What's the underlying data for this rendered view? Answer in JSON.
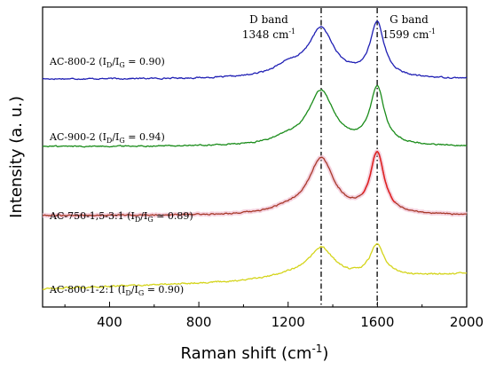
{
  "chart_data": {
    "type": "line",
    "xlabel": "Raman shift (cm",
    "xlabel_sup": "-1",
    "xlabel_end": ")",
    "ylabel": "Intensity (a. u.)",
    "xlim": [
      100,
      2000
    ],
    "x_ticks": [
      "400",
      "800",
      "1200",
      "1600",
      "2000"
    ],
    "x_tick_values": [
      400,
      800,
      1200,
      1600,
      2000
    ],
    "y_ticks_shown": false,
    "grid": false,
    "legend": "none",
    "reference_lines": [
      {
        "x": 1348,
        "style": "dash-dot",
        "name_line": "D band",
        "value_line": "1348 cm",
        "sup": "-1"
      },
      {
        "x": 1599,
        "style": "dash-dot",
        "name_line": "G band",
        "value_line": "1599 cm",
        "sup": "-1"
      }
    ],
    "series": [
      {
        "label_pre": "AC-800-2 (I",
        "sub1": "D",
        "label_mid": "/I",
        "sub2": "G",
        "label_post": " = 0.90)",
        "color": "#1f1fb4",
        "baseline": 0.76,
        "d_height": 0.16,
        "g_height": 0.18,
        "shoulder": 0.035,
        "noise": 0.004
      },
      {
        "label_pre": "AC-900-2 (I",
        "sub1": "D",
        "label_mid": "/I",
        "sub2": "G",
        "label_post": " = 0.94)",
        "color": "#1a8c1a",
        "baseline": 0.535,
        "d_height": 0.18,
        "g_height": 0.19,
        "shoulder": 0.02,
        "noise": 0.004
      },
      {
        "label_pre": "AC-750-1,5-3:1 (I",
        "sub1": "D",
        "label_mid": "/I",
        "sub2": "G",
        "label_post": " = 0.89)",
        "color": "#a83a2a",
        "g_color": "#e02020",
        "band_color": "#f3c8d8",
        "baseline": 0.305,
        "d_height": 0.185,
        "g_height": 0.2,
        "shoulder": 0.015,
        "noise": 0.004
      },
      {
        "label_pre": "AC-800-1-2:1 (I",
        "sub1": "D",
        "label_mid": "/I",
        "sub2": "G",
        "label_post": " = 0.90)",
        "color": "#d4d41a",
        "baseline": 0.06,
        "d_height": 0.1,
        "g_height": 0.105,
        "shoulder": 0.015,
        "noise": 0.005,
        "rising": 0.05
      }
    ]
  }
}
